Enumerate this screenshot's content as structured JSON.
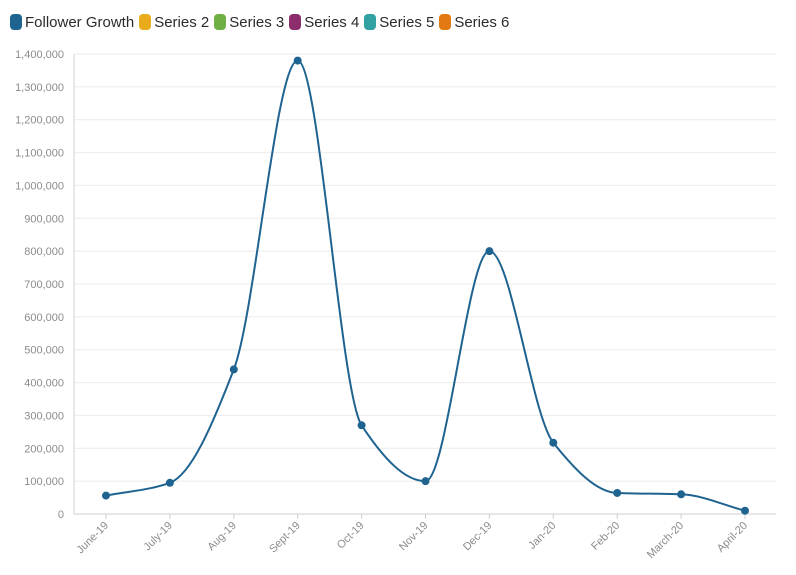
{
  "chart_data": {
    "type": "line",
    "title": "",
    "xlabel": "",
    "ylabel": "",
    "categories": [
      "June-19",
      "July-19",
      "Aug-19",
      "Sept-19",
      "Oct-19",
      "Nov-19",
      "Dec-19",
      "Jan-20",
      "Feb-20",
      "March-20",
      "April-20"
    ],
    "series": [
      {
        "name": "Follower Growth",
        "color": "#1f6391",
        "values": [
          56000,
          95000,
          440000,
          1380000,
          270000,
          100000,
          800000,
          217000,
          64000,
          60000,
          10000
        ]
      }
    ],
    "legend": [
      {
        "name": "Follower Growth",
        "color": "#1f6391"
      },
      {
        "name": "Series 2",
        "color": "#e8ac1a"
      },
      {
        "name": "Series 3",
        "color": "#6eaf46"
      },
      {
        "name": "Series 4",
        "color": "#8c2e6e"
      },
      {
        "name": "Series 5",
        "color": "#33a1a1"
      },
      {
        "name": "Series 6",
        "color": "#e37912"
      }
    ],
    "legend_position": "top-left",
    "ylim": [
      0,
      1400000
    ],
    "y_ticks": [
      0,
      100000,
      200000,
      300000,
      400000,
      500000,
      600000,
      700000,
      800000,
      900000,
      1000000,
      1100000,
      1200000,
      1300000,
      1400000
    ],
    "y_tick_labels": [
      "0",
      "100,000",
      "200,000",
      "300,000",
      "400,000",
      "500,000",
      "600,000",
      "700,000",
      "800,000",
      "900,000",
      "1,000,000",
      "1,100,000",
      "1,200,000",
      "1,300,000",
      "1,400,000"
    ],
    "grid": true
  }
}
